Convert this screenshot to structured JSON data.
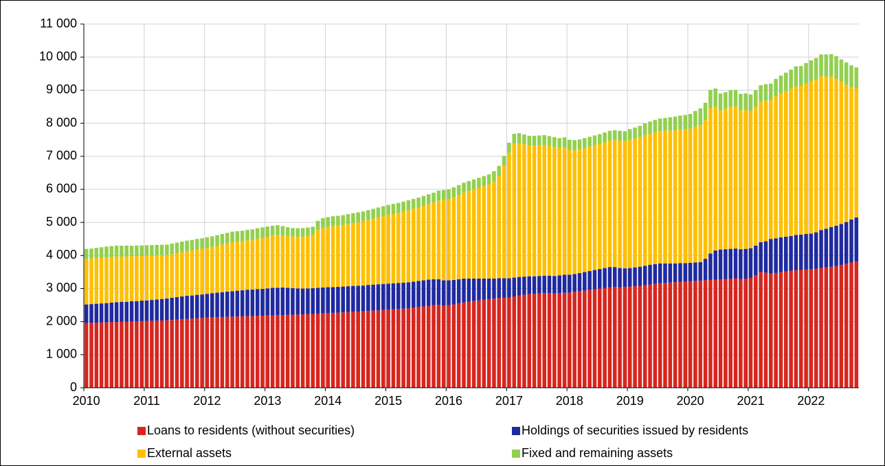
{
  "chart_data": {
    "type": "stacked_bar",
    "categories": [
      "2010",
      null,
      null,
      null,
      null,
      null,
      null,
      null,
      null,
      null,
      null,
      null,
      "2011",
      null,
      null,
      null,
      null,
      null,
      null,
      null,
      null,
      null,
      null,
      null,
      "2012",
      null,
      null,
      null,
      null,
      null,
      null,
      null,
      null,
      null,
      null,
      null,
      "2013",
      null,
      null,
      null,
      null,
      null,
      null,
      null,
      null,
      null,
      null,
      null,
      "2014",
      null,
      null,
      null,
      null,
      null,
      null,
      null,
      null,
      null,
      null,
      null,
      "2015",
      null,
      null,
      null,
      null,
      null,
      null,
      null,
      null,
      null,
      null,
      null,
      "2016",
      null,
      null,
      null,
      null,
      null,
      null,
      null,
      null,
      null,
      null,
      null,
      "2017",
      null,
      null,
      null,
      null,
      null,
      null,
      null,
      null,
      null,
      null,
      null,
      "2018",
      null,
      null,
      null,
      null,
      null,
      null,
      null,
      null,
      null,
      null,
      null,
      "2019",
      null,
      null,
      null,
      null,
      null,
      null,
      null,
      null,
      null,
      null,
      null,
      "2020",
      null,
      null,
      null,
      null,
      null,
      null,
      null,
      null,
      null,
      null,
      null,
      "2021",
      null,
      null,
      null,
      null,
      null,
      null,
      null,
      null,
      null,
      null,
      null,
      "2022",
      null,
      null,
      null,
      null,
      null,
      null,
      null,
      null,
      null
    ],
    "series": [
      {
        "name": "Loans to residents (without securities)",
        "color": "#d7261e",
        "values": [
          1960,
          1965,
          1970,
          1975,
          1980,
          1985,
          1990,
          1995,
          2000,
          2005,
          2010,
          2015,
          2020,
          2025,
          2030,
          2035,
          2040,
          2050,
          2060,
          2070,
          2080,
          2090,
          2100,
          2110,
          2120,
          2130,
          2135,
          2140,
          2145,
          2150,
          2155,
          2160,
          2165,
          2170,
          2175,
          2180,
          2185,
          2190,
          2195,
          2200,
          2205,
          2210,
          2215,
          2220,
          2225,
          2230,
          2240,
          2250,
          2260,
          2265,
          2270,
          2280,
          2290,
          2300,
          2305,
          2310,
          2320,
          2330,
          2340,
          2350,
          2360,
          2370,
          2380,
          2390,
          2400,
          2420,
          2440,
          2460,
          2480,
          2500,
          2510,
          2490,
          2500,
          2520,
          2550,
          2580,
          2600,
          2620,
          2640,
          2660,
          2680,
          2700,
          2710,
          2720,
          2730,
          2760,
          2790,
          2810,
          2830,
          2840,
          2850,
          2860,
          2860,
          2850,
          2860,
          2870,
          2880,
          2900,
          2920,
          2940,
          2960,
          2980,
          3000,
          3020,
          3040,
          3050,
          3040,
          3050,
          3060,
          3070,
          3080,
          3100,
          3120,
          3140,
          3160,
          3170,
          3180,
          3190,
          3200,
          3210,
          3220,
          3230,
          3240,
          3250,
          3260,
          3270,
          3280,
          3290,
          3300,
          3310,
          3290,
          3300,
          3320,
          3400,
          3500,
          3480,
          3450,
          3470,
          3500,
          3520,
          3540,
          3560,
          3570,
          3580,
          3590,
          3600,
          3620,
          3640,
          3660,
          3680,
          3710,
          3750,
          3790,
          3820
        ]
      },
      {
        "name": "Holdings of securities issued by residents",
        "color": "#1f2aa0",
        "values": [
          560,
          565,
          570,
          575,
          580,
          590,
          600,
          600,
          600,
          610,
          610,
          620,
          620,
          630,
          640,
          650,
          660,
          670,
          680,
          690,
          700,
          700,
          710,
          710,
          720,
          730,
          740,
          750,
          760,
          770,
          780,
          790,
          800,
          800,
          810,
          810,
          820,
          830,
          830,
          830,
          820,
          800,
          790,
          780,
          780,
          780,
          780,
          780,
          780,
          780,
          780,
          780,
          780,
          780,
          780,
          780,
          790,
          790,
          790,
          790,
          790,
          790,
          790,
          790,
          790,
          790,
          790,
          790,
          790,
          780,
          770,
          760,
          750,
          740,
          730,
          720,
          700,
          680,
          660,
          640,
          620,
          600,
          600,
          590,
          580,
          570,
          560,
          550,
          540,
          530,
          530,
          530,
          530,
          530,
          540,
          550,
          540,
          540,
          550,
          560,
          570,
          580,
          590,
          600,
          610,
          600,
          580,
          560,
          560,
          570,
          580,
          590,
          600,
          600,
          600,
          590,
          580,
          570,
          570,
          560,
          560,
          560,
          560,
          650,
          800,
          880,
          900,
          900,
          900,
          900,
          900,
          900,
          900,
          900,
          900,
          950,
          1050,
          1050,
          1050,
          1050,
          1050,
          1060,
          1060,
          1070,
          1070,
          1100,
          1150,
          1170,
          1200,
          1220,
          1240,
          1260,
          1300,
          1330
        ]
      },
      {
        "name": "External assets",
        "color": "#ffc000",
        "values": [
          1380,
          1380,
          1380,
          1380,
          1380,
          1380,
          1380,
          1370,
          1370,
          1360,
          1360,
          1350,
          1350,
          1340,
          1330,
          1320,
          1310,
          1320,
          1330,
          1340,
          1350,
          1360,
          1370,
          1380,
          1390,
          1400,
          1420,
          1440,
          1460,
          1480,
          1480,
          1480,
          1490,
          1500,
          1520,
          1540,
          1560,
          1580,
          1600,
          1580,
          1560,
          1560,
          1560,
          1570,
          1580,
          1600,
          1750,
          1800,
          1820,
          1840,
          1850,
          1860,
          1880,
          1900,
          1920,
          1940,
          1960,
          1990,
          2020,
          2050,
          2080,
          2100,
          2120,
          2150,
          2180,
          2200,
          2220,
          2250,
          2280,
          2320,
          2380,
          2430,
          2450,
          2500,
          2550,
          2600,
          2650,
          2700,
          2750,
          2800,
          2850,
          2950,
          3100,
          3400,
          3800,
          4050,
          4050,
          4000,
          3950,
          3950,
          3950,
          3950,
          3920,
          3900,
          3850,
          3850,
          3780,
          3750,
          3740,
          3750,
          3760,
          3770,
          3780,
          3800,
          3820,
          3840,
          3850,
          3850,
          3880,
          3900,
          3920,
          3950,
          3970,
          3990,
          4000,
          4010,
          4020,
          4030,
          4040,
          4050,
          4050,
          4100,
          4150,
          4200,
          4400,
          4350,
          4200,
          4250,
          4300,
          4300,
          4200,
          4200,
          4150,
          4200,
          4250,
          4250,
          4200,
          4300,
          4350,
          4400,
          4450,
          4500,
          4500,
          4550,
          4600,
          4620,
          4650,
          4600,
          4550,
          4450,
          4300,
          4150,
          4000,
          3900
        ]
      },
      {
        "name": "Fixed and remaining assets",
        "color": "#92d050",
        "values": [
          300,
          300,
          310,
          320,
          330,
          330,
          330,
          330,
          330,
          320,
          320,
          320,
          320,
          320,
          320,
          320,
          320,
          320,
          320,
          320,
          320,
          320,
          320,
          320,
          320,
          320,
          320,
          320,
          320,
          320,
          320,
          320,
          320,
          320,
          320,
          320,
          310,
          300,
          290,
          280,
          270,
          260,
          260,
          260,
          260,
          260,
          280,
          300,
          300,
          300,
          300,
          300,
          300,
          300,
          300,
          300,
          300,
          300,
          300,
          300,
          300,
          300,
          300,
          300,
          300,
          300,
          300,
          300,
          300,
          300,
          300,
          300,
          300,
          300,
          300,
          300,
          300,
          300,
          300,
          300,
          300,
          300,
          300,
          300,
          300,
          300,
          300,
          300,
          300,
          300,
          300,
          300,
          300,
          300,
          300,
          300,
          300,
          300,
          300,
          300,
          300,
          300,
          300,
          300,
          300,
          300,
          300,
          300,
          320,
          330,
          340,
          350,
          360,
          370,
          380,
          390,
          400,
          410,
          420,
          430,
          450,
          480,
          500,
          520,
          550,
          550,
          520,
          500,
          500,
          500,
          500,
          500,
          500,
          500,
          500,
          500,
          500,
          520,
          540,
          560,
          580,
          600,
          600,
          620,
          640,
          650,
          660,
          670,
          680,
          680,
          680,
          680,
          660,
          640
        ]
      }
    ],
    "ylim": [
      0,
      11000
    ],
    "yticks": [
      0,
      {
        "value": 1000,
        "label": "1 000"
      },
      {
        "value": 2000,
        "label": "2 000"
      },
      {
        "value": 3000,
        "label": "3 000"
      },
      {
        "value": 4000,
        "label": "4 000"
      },
      {
        "value": 5000,
        "label": "5 000"
      },
      {
        "value": 6000,
        "label": "6 000"
      },
      {
        "value": 7000,
        "label": "7 000"
      },
      {
        "value": 8000,
        "label": "8 000"
      },
      {
        "value": 9000,
        "label": "9 000"
      },
      {
        "value": 10000,
        "label": "10 000"
      },
      {
        "value": 11000,
        "label": "11 000"
      }
    ],
    "grid": true,
    "legend": "bottom"
  }
}
